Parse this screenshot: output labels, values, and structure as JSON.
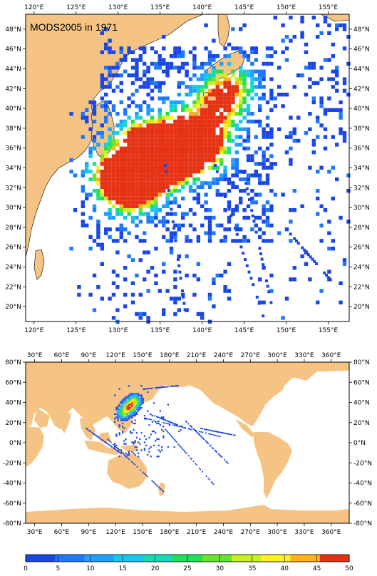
{
  "top_map": {
    "title": "MODS2005 in 1971",
    "lon_labels": [
      "120°E",
      "125°E",
      "130°E",
      "135°E",
      "140°E",
      "145°E",
      "150°E",
      "155°E"
    ],
    "lat_labels": [
      "48°N",
      "46°N",
      "44°N",
      "42°N",
      "40°N",
      "38°N",
      "36°N",
      "34°N",
      "32°N",
      "30°N",
      "28°N",
      "26°N",
      "24°N",
      "22°N",
      "20°N"
    ],
    "lon_range": [
      119,
      157.5
    ],
    "lat_range": [
      18.5,
      49.5
    ]
  },
  "bottom_map": {
    "lon_labels": [
      "30°E",
      "60°E",
      "90°E",
      "120°E",
      "150°E",
      "180°E",
      "210°E",
      "240°E",
      "270°E",
      "300°E",
      "330°E",
      "360°E"
    ],
    "lat_labels": [
      "80°N",
      "60°N",
      "40°N",
      "20°N",
      "0°N",
      "-20°N",
      "-40°N",
      "-60°N",
      "-80°N"
    ],
    "lon_range": [
      20,
      380
    ],
    "lat_range": [
      -80,
      80
    ]
  },
  "colorbar": {
    "labels": [
      "0",
      "5",
      "10",
      "15",
      "20",
      "25",
      "30",
      "35",
      "40",
      "45",
      "50"
    ],
    "colors": [
      "#1a46e6",
      "#1e78ff",
      "#1ea0ff",
      "#14c8f0",
      "#14dcb4",
      "#1ede5a",
      "#64e628",
      "#c8f01e",
      "#fff01e",
      "#ffb414",
      "#e63214"
    ]
  },
  "colors": {
    "land": "#f5c485",
    "ocean": "#ffffff"
  }
}
